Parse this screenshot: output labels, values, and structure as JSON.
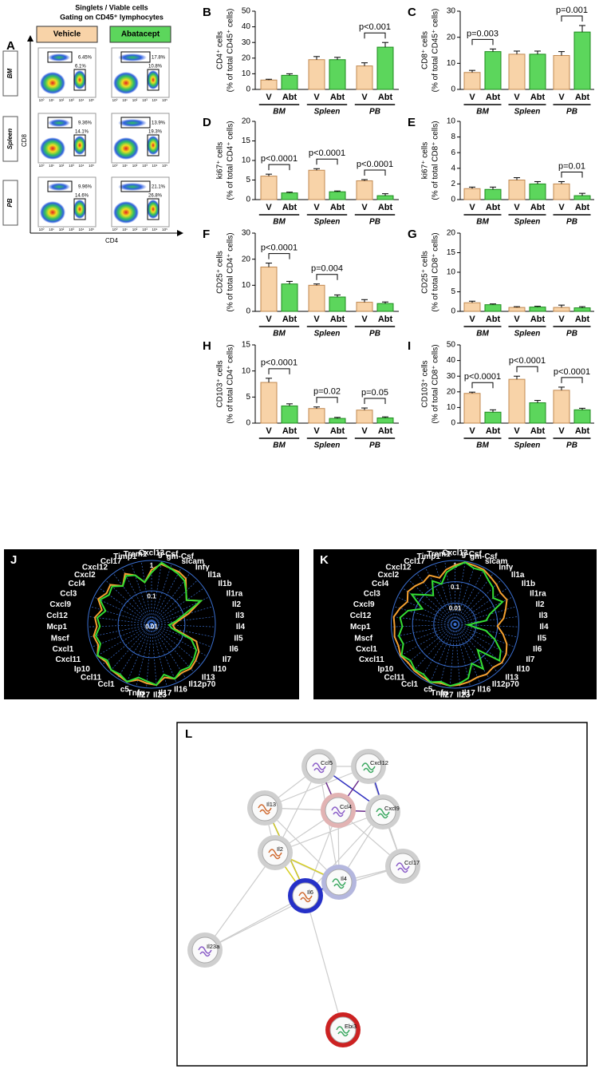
{
  "flow": {
    "panel": "A",
    "title": [
      "Singlets / Viable cells",
      "Gating on CD45⁺ lymphocytes"
    ],
    "columns": [
      "Vehicle",
      "Abatacept"
    ],
    "rows": [
      "BM",
      "Spleen",
      "PB"
    ],
    "xlabel": "CD4",
    "ylabel": "CD8",
    "axis_ticks": [
      "10⁰",
      "10¹",
      "10²",
      "10³",
      "10⁴",
      "10⁵"
    ],
    "gates": [
      [
        [
          "6.45%",
          "6.1%"
        ],
        [
          "17.8%",
          "10.8%"
        ]
      ],
      [
        [
          "9.36%",
          "14.1%"
        ],
        [
          "13.9%",
          "19.3%"
        ]
      ],
      [
        [
          "9.96%",
          "14.6%"
        ],
        [
          "21.1%",
          "26.8%"
        ]
      ]
    ]
  },
  "chart_data": [
    {
      "type": "bar",
      "panel": "B",
      "ylabel": [
        "CD4⁺ cells",
        "(% of total CD45⁺ cells)"
      ],
      "categories": [
        "V",
        "Abt",
        "V",
        "Abt",
        "V",
        "Abt"
      ],
      "groups": [
        "BM",
        "Spleen",
        "PB"
      ],
      "values": [
        6,
        9,
        19,
        19,
        15,
        27
      ],
      "errors": [
        0.5,
        1,
        2,
        1.5,
        2,
        3
      ],
      "pvalues": [
        null,
        null,
        "p<0.001"
      ],
      "colors": [
        "#f8d3a8",
        "#5cd65c"
      ],
      "ylim": [
        0,
        50
      ],
      "yticks": [
        0,
        10,
        20,
        30,
        40,
        50
      ]
    },
    {
      "type": "bar",
      "panel": "C",
      "ylabel": [
        "CD8⁺ cells",
        "(% of total CD45⁺ cells)"
      ],
      "categories": [
        "V",
        "Abt",
        "V",
        "Abt",
        "V",
        "Abt"
      ],
      "groups": [
        "BM",
        "Spleen",
        "PB"
      ],
      "values": [
        6.5,
        14.5,
        13.5,
        13.5,
        13,
        22
      ],
      "errors": [
        0.8,
        1,
        1.2,
        1.2,
        1.5,
        2.5
      ],
      "pvalues": [
        "p=0.003",
        null,
        "p=0.001"
      ],
      "colors": [
        "#f8d3a8",
        "#5cd65c"
      ],
      "ylim": [
        0,
        30
      ],
      "yticks": [
        0,
        10,
        20,
        30
      ]
    },
    {
      "type": "bar",
      "panel": "D",
      "ylabel": [
        "ki67⁺ cells",
        "(% of total CD4⁺ cells)"
      ],
      "categories": [
        "V",
        "Abt",
        "V",
        "Abt",
        "V",
        "Abt"
      ],
      "groups": [
        "BM",
        "Spleen",
        "PB"
      ],
      "values": [
        6,
        1.7,
        7.5,
        2,
        4.8,
        1
      ],
      "errors": [
        0.5,
        0.2,
        0.4,
        0.2,
        0.3,
        0.5
      ],
      "pvalues": [
        "p<0.0001",
        "p<0.0001",
        "p<0.0001"
      ],
      "colors": [
        "#f8d3a8",
        "#5cd65c"
      ],
      "ylim": [
        0,
        20
      ],
      "yticks": [
        0,
        5,
        10,
        15,
        20
      ]
    },
    {
      "type": "bar",
      "panel": "E",
      "ylabel": [
        "ki67⁺ cells",
        "(% of total CD8⁺ cells)"
      ],
      "categories": [
        "V",
        "Abt",
        "V",
        "Abt",
        "V",
        "Abt"
      ],
      "groups": [
        "BM",
        "Spleen",
        "PB"
      ],
      "values": [
        1.4,
        1.3,
        2.5,
        2,
        2,
        0.5
      ],
      "errors": [
        0.2,
        0.3,
        0.3,
        0.3,
        0.3,
        0.3
      ],
      "pvalues": [
        null,
        null,
        "p=0.01"
      ],
      "colors": [
        "#f8d3a8",
        "#5cd65c"
      ],
      "ylim": [
        0,
        10
      ],
      "yticks": [
        0,
        2,
        4,
        6,
        8,
        10
      ]
    },
    {
      "type": "bar",
      "panel": "F",
      "ylabel": [
        "CD25⁺ cells",
        "(% of total CD4⁺ cells)"
      ],
      "categories": [
        "V",
        "Abt",
        "V",
        "Abt",
        "V",
        "Abt"
      ],
      "groups": [
        "BM",
        "Spleen",
        "PB"
      ],
      "values": [
        17,
        10.5,
        10,
        5.5,
        3.5,
        3
      ],
      "errors": [
        1.5,
        1,
        0.5,
        0.8,
        1,
        0.6
      ],
      "pvalues": [
        "p<0.0001",
        "p=0.004",
        null
      ],
      "colors": [
        "#f8d3a8",
        "#5cd65c"
      ],
      "ylim": [
        0,
        30
      ],
      "yticks": [
        0,
        10,
        20,
        30
      ]
    },
    {
      "type": "bar",
      "panel": "G",
      "ylabel": [
        "CD25⁺ cells",
        "(% of total CD8⁺ cells)"
      ],
      "categories": [
        "V",
        "Abt",
        "V",
        "Abt",
        "V",
        "Abt"
      ],
      "groups": [
        "BM",
        "Spleen",
        "PB"
      ],
      "values": [
        2.2,
        1.7,
        1,
        1.1,
        1,
        0.9
      ],
      "errors": [
        0.4,
        0.2,
        0.2,
        0.2,
        0.6,
        0.3
      ],
      "pvalues": [
        null,
        null,
        null
      ],
      "colors": [
        "#f8d3a8",
        "#5cd65c"
      ],
      "ylim": [
        0,
        20
      ],
      "yticks": [
        0,
        5,
        10,
        15,
        20
      ]
    },
    {
      "type": "bar",
      "panel": "H",
      "ylabel": [
        "CD103⁺ cells",
        "(% of total CD4⁺ cells)"
      ],
      "categories": [
        "V",
        "Abt",
        "V",
        "Abt",
        "V",
        "Abt"
      ],
      "groups": [
        "BM",
        "Spleen",
        "PB"
      ],
      "values": [
        7.8,
        3.3,
        2.8,
        0.9,
        2.5,
        1
      ],
      "errors": [
        0.8,
        0.4,
        0.3,
        0.2,
        0.4,
        0.2
      ],
      "pvalues": [
        "p<0.0001",
        "p=0.02",
        "p=0.05"
      ],
      "colors": [
        "#f8d3a8",
        "#5cd65c"
      ],
      "ylim": [
        0,
        15
      ],
      "yticks": [
        0,
        5,
        10,
        15
      ]
    },
    {
      "type": "bar",
      "panel": "I",
      "ylabel": [
        "CD103⁺ cells",
        "(% of total CD8⁺ cells)"
      ],
      "categories": [
        "V",
        "Abt",
        "V",
        "Abt",
        "V",
        "Abt"
      ],
      "groups": [
        "BM",
        "Spleen",
        "PB"
      ],
      "values": [
        19,
        7,
        28,
        13,
        21,
        8.5
      ],
      "errors": [
        0.8,
        1.5,
        2,
        1.5,
        2,
        1
      ],
      "pvalues": [
        "p<0.0001",
        "p<0.0001",
        "p<0.0001"
      ],
      "colors": [
        "#f8d3a8",
        "#5cd65c"
      ],
      "ylim": [
        0,
        50
      ],
      "yticks": [
        0,
        10,
        20,
        30,
        40,
        50
      ]
    },
    {
      "type": "radar",
      "panel": "J",
      "log": true,
      "rlim": [
        0.008,
        1
      ],
      "rticks": [
        0.01,
        0.1,
        1
      ],
      "categories": [
        "Cxcl13",
        "g-Csf",
        "gm-Csf",
        "slcam",
        "Infγ",
        "Il1a",
        "Il1b",
        "Il1ra",
        "Il2",
        "Il3",
        "Il4",
        "Il5",
        "Il6",
        "Il7",
        "Il10",
        "Il13",
        "Il12p70",
        "Il16",
        "Il17",
        "Il23",
        "Il27",
        "Tnfα",
        "c5",
        "Ccl1",
        "Ccl11",
        "Ip10",
        "Cxcl11",
        "Cxcl1",
        "Mscf",
        "Mcp1",
        "Ccl12",
        "Cxcl9",
        "Ccl3",
        "Ccl4",
        "Cxcl2",
        "Cxcl12",
        "Ccl17",
        "Timp1",
        "Trem1"
      ],
      "series": [
        {
          "color": "#f5a030",
          "values": [
            0.5,
            0.8,
            0.7,
            0.7,
            0.6,
            0.3,
            0.2,
            0.5,
            0.15,
            0.06,
            0.04,
            0.05,
            0.3,
            0.5,
            0.6,
            0.7,
            0.6,
            0.7,
            0.5,
            0.8,
            0.7,
            0.6,
            0.9,
            0.8,
            0.8,
            0.7,
            0.9,
            0.6,
            0.7,
            0.5,
            0.6,
            0.4,
            0.7,
            0.5,
            0.6,
            0.3,
            0.6,
            0.4,
            0.2
          ]
        },
        {
          "color": "#33dd33",
          "values": [
            0.4,
            0.9,
            0.7,
            0.6,
            0.5,
            0.3,
            0.2,
            0.5,
            0.1,
            0.05,
            0.03,
            0.04,
            0.2,
            0.4,
            0.5,
            0.6,
            0.5,
            0.7,
            0.4,
            0.8,
            0.6,
            0.5,
            0.9,
            0.7,
            0.8,
            0.6,
            0.9,
            0.5,
            0.6,
            0.4,
            0.5,
            0.3,
            0.6,
            0.4,
            0.5,
            0.3,
            0.5,
            0.4,
            0.2
          ]
        }
      ]
    },
    {
      "type": "radar",
      "panel": "K",
      "log": true,
      "rlim": [
        0.001,
        1
      ],
      "rticks": [
        0.01,
        0.1,
        1
      ],
      "categories": [
        "Cxcl13",
        "g-Csf",
        "gm-Csf",
        "slcam",
        "Infγ",
        "Il1a",
        "Il1b",
        "Il1ra",
        "Il2",
        "Il3",
        "Il4",
        "Il5",
        "Il6",
        "Il7",
        "Il10",
        "Il13",
        "Il12p70",
        "Il16",
        "Il17",
        "Il23",
        "Il27",
        "Tnfα",
        "c5",
        "Ccl1",
        "Ccl11",
        "Ip10",
        "Cxcl11",
        "Cxcl1",
        "Mscf",
        "Mcp1",
        "Ccl12",
        "Cxcl9",
        "Ccl3",
        "Ccl4",
        "Cxcl2",
        "Cxcl12",
        "Ccl17",
        "Timp1",
        "Trem1"
      ],
      "series": [
        {
          "color": "#f5a030",
          "values": [
            0.6,
            0.9,
            0.8,
            0.8,
            0.6,
            0.5,
            0.4,
            0.5,
            0.3,
            0.2,
            0.1,
            0.2,
            0.4,
            0.6,
            0.7,
            0.5,
            0.6,
            0.5,
            0.6,
            0.7,
            0.8,
            0.7,
            0.9,
            0.8,
            0.8,
            0.7,
            0.9,
            0.7,
            0.8,
            0.7,
            0.8,
            0.5,
            0.3,
            0.5,
            0.4,
            0.3,
            0.4,
            0.2,
            0.4
          ]
        },
        {
          "color": "#33dd33",
          "values": [
            0.5,
            0.9,
            0.6,
            0.7,
            0.4,
            0.3,
            0.15,
            0.3,
            0.05,
            0.03,
            0.004,
            0.03,
            0.1,
            0.3,
            0.5,
            0.04,
            0.3,
            0.1,
            0.4,
            0.6,
            0.8,
            0.6,
            0.9,
            0.6,
            0.7,
            0.5,
            0.8,
            0.4,
            0.5,
            0.3,
            0.4,
            0.2,
            0.05,
            0.3,
            0.1,
            0.05,
            0.2,
            0.1,
            0.3
          ]
        }
      ]
    }
  ],
  "network": {
    "panel": "L",
    "nodes": [
      "Ccl5",
      "Cxcl12",
      "Il13",
      "Ccl4",
      "Cxcl9",
      "Il2",
      "Ccl17",
      "Il4",
      "Il6",
      "Il23a",
      "Ebi3"
    ]
  }
}
